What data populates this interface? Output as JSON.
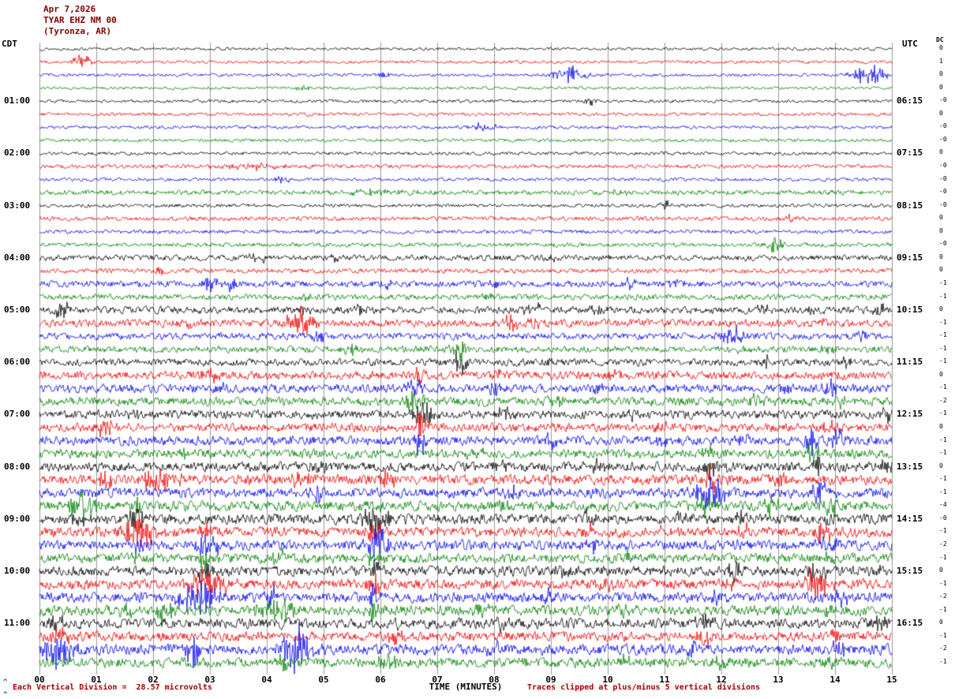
{
  "header": {
    "date": "Apr 7,2026",
    "station": "TYAR EHZ NM 00",
    "location": "(Tyronza, AR)"
  },
  "footer": {
    "scale_note": "Each Vertical Division =  28.57 microvolts",
    "clip_note": "Traces clipped at plus/minus 5 vertical divisions",
    "x_label": "TIME (MINUTES)",
    "caret": "^"
  },
  "chart_data": {
    "type": "line",
    "title": "Helicorder seismogram TYAR EHZ NM 00 (Tyronza, AR) Apr 7,2026",
    "left_timezone": "CDT",
    "right_timezone": "UTC",
    "dc_header": "DC",
    "x_label": "TIME (MINUTES)",
    "x_ticks": [
      "00",
      "01",
      "02",
      "03",
      "04",
      "05",
      "06",
      "07",
      "08",
      "09",
      "10",
      "11",
      "12",
      "13",
      "14",
      "15"
    ],
    "x_range_minutes": [
      0,
      15
    ],
    "minutes_per_row": 15,
    "left_hour_labels": [
      "01:00",
      "02:00",
      "03:00",
      "04:00",
      "05:00",
      "06:00",
      "07:00",
      "08:00",
      "09:00",
      "10:00",
      "11:00"
    ],
    "right_hour_labels": [
      "06:15",
      "07:15",
      "08:15",
      "09:15",
      "10:15",
      "11:15",
      "12:15",
      "13:15",
      "14:15",
      "15:15",
      "16:15"
    ],
    "amplitude_note": "Each vertical division = 28.57 microvolts, traces clipped at plus/minus 5 vertical divisions",
    "colors": {
      "grid": "#9a9a9a",
      "trace_hex": {
        "black": "#000000",
        "red": "#ee0000",
        "blue": "#0000ee",
        "green": "#007f00"
      }
    },
    "rows": [
      {
        "start_cdt": "00:00",
        "color": "black",
        "base_amp": 1.2,
        "dc": "0",
        "bursts": []
      },
      {
        "start_cdt": "00:15",
        "color": "red",
        "base_amp": 1.3,
        "dc": "1",
        "bursts": [
          [
            0.75,
            9
          ]
        ]
      },
      {
        "start_cdt": "00:30",
        "color": "blue",
        "base_amp": 1.3,
        "dc": "0",
        "bursts": [
          [
            6.05,
            4
          ],
          [
            9.3,
            10,
            0.18
          ],
          [
            14.6,
            11,
            0.2
          ]
        ]
      },
      {
        "start_cdt": "00:45",
        "color": "green",
        "base_amp": 1.2,
        "dc": "0",
        "bursts": [
          [
            4.65,
            5
          ]
        ]
      },
      {
        "start_cdt": "01:00",
        "color": "black",
        "base_amp": 1.3,
        "dc": "-0",
        "bursts": [
          [
            9.7,
            4
          ]
        ]
      },
      {
        "start_cdt": "01:15",
        "color": "red",
        "base_amp": 1.4,
        "dc": "0",
        "bursts": []
      },
      {
        "start_cdt": "01:30",
        "color": "blue",
        "base_amp": 1.3,
        "dc": "-0",
        "bursts": [
          [
            7.8,
            4,
            0.25
          ]
        ]
      },
      {
        "start_cdt": "01:45",
        "color": "green",
        "base_amp": 1.4,
        "dc": "-0",
        "bursts": []
      },
      {
        "start_cdt": "02:00",
        "color": "black",
        "base_amp": 1.4,
        "dc": "0",
        "bursts": []
      },
      {
        "start_cdt": "02:15",
        "color": "red",
        "base_amp": 1.6,
        "dc": "-0",
        "bursts": [
          [
            3.8,
            3,
            0.5
          ]
        ]
      },
      {
        "start_cdt": "02:30",
        "color": "blue",
        "base_amp": 1.4,
        "dc": "-0",
        "bursts": [
          [
            4.3,
            4
          ]
        ]
      },
      {
        "start_cdt": "02:45",
        "color": "green",
        "base_amp": 2.0,
        "dc": "-0",
        "bursts": [
          [
            6.0,
            3,
            0.4
          ],
          [
            10.2,
            3
          ]
        ]
      },
      {
        "start_cdt": "03:00",
        "color": "black",
        "base_amp": 1.5,
        "dc": "-0",
        "bursts": [
          [
            11.05,
            7
          ]
        ]
      },
      {
        "start_cdt": "03:15",
        "color": "red",
        "base_amp": 1.8,
        "dc": "0",
        "bursts": [
          [
            13.2,
            4
          ]
        ]
      },
      {
        "start_cdt": "03:30",
        "color": "blue",
        "base_amp": 1.6,
        "dc": "0",
        "bursts": [
          [
            12.1,
            3
          ]
        ]
      },
      {
        "start_cdt": "03:45",
        "color": "green",
        "base_amp": 1.8,
        "dc": "-0",
        "bursts": [
          [
            12.95,
            8
          ]
        ]
      },
      {
        "start_cdt": "04:00",
        "color": "black",
        "base_amp": 2.4,
        "dc": "0",
        "bursts": [
          [
            3.85,
            5
          ],
          [
            5.2,
            4
          ],
          [
            9.0,
            3
          ]
        ]
      },
      {
        "start_cdt": "04:15",
        "color": "red",
        "base_amp": 2.0,
        "dc": "0",
        "bursts": [
          [
            2.1,
            3
          ]
        ]
      },
      {
        "start_cdt": "04:30",
        "color": "blue",
        "base_amp": 2.6,
        "dc": "-1",
        "bursts": [
          [
            3.0,
            9
          ],
          [
            3.35,
            7
          ],
          [
            6.1,
            5
          ],
          [
            8.0,
            4
          ],
          [
            10.4,
            5
          ],
          [
            11.2,
            4
          ]
        ]
      },
      {
        "start_cdt": "04:45",
        "color": "green",
        "base_amp": 2.4,
        "dc": "-1",
        "bursts": [
          [
            4.7,
            4
          ],
          [
            7.9,
            3
          ]
        ]
      },
      {
        "start_cdt": "05:00",
        "color": "black",
        "base_amp": 3.0,
        "dc": "0",
        "bursts": [
          [
            0.4,
            8
          ],
          [
            4.6,
            5
          ],
          [
            5.6,
            6
          ],
          [
            8.7,
            7
          ],
          [
            9.8,
            4
          ],
          [
            12.7,
            4
          ],
          [
            13.6,
            6
          ],
          [
            14.8,
            7
          ]
        ]
      },
      {
        "start_cdt": "05:15",
        "color": "red",
        "base_amp": 3.2,
        "dc": "-1",
        "bursts": [
          [
            2.6,
            6
          ],
          [
            4.6,
            13,
            0.18
          ],
          [
            8.3,
            9
          ],
          [
            8.7,
            7
          ],
          [
            13.8,
            4
          ]
        ]
      },
      {
        "start_cdt": "05:30",
        "color": "blue",
        "base_amp": 2.8,
        "dc": "-1",
        "bursts": [
          [
            4.9,
            10
          ],
          [
            12.2,
            9,
            0.2
          ],
          [
            14.5,
            5
          ]
        ]
      },
      {
        "start_cdt": "05:45",
        "color": "green",
        "base_amp": 2.8,
        "dc": "-1",
        "bursts": [
          [
            5.5,
            6
          ],
          [
            7.4,
            11
          ],
          [
            12.4,
            6
          ],
          [
            13.9,
            5
          ]
        ]
      },
      {
        "start_cdt": "06:00",
        "color": "black",
        "base_amp": 3.0,
        "dc": "-1",
        "bursts": [
          [
            7.4,
            13,
            0.1
          ],
          [
            9.0,
            4
          ],
          [
            12.8,
            7
          ],
          [
            14.2,
            5
          ]
        ]
      },
      {
        "start_cdt": "06:15",
        "color": "red",
        "base_amp": 3.4,
        "dc": "0",
        "bursts": [
          [
            3.0,
            7
          ],
          [
            6.7,
            10
          ],
          [
            8.1,
            6
          ],
          [
            10.1,
            7
          ],
          [
            14.1,
            7
          ]
        ]
      },
      {
        "start_cdt": "06:30",
        "color": "blue",
        "base_amp": 3.6,
        "dc": "-1",
        "bursts": [
          [
            3.2,
            7
          ],
          [
            6.6,
            8
          ],
          [
            8.0,
            6
          ],
          [
            9.8,
            5
          ],
          [
            13.2,
            6
          ],
          [
            13.9,
            8
          ]
        ]
      },
      {
        "start_cdt": "06:45",
        "color": "green",
        "base_amp": 3.6,
        "dc": "-2",
        "bursts": [
          [
            6.6,
            11
          ],
          [
            9.1,
            5
          ],
          [
            12.6,
            9
          ],
          [
            14.1,
            7
          ]
        ]
      },
      {
        "start_cdt": "07:00",
        "color": "black",
        "base_amp": 3.6,
        "dc": "-1",
        "bursts": [
          [
            1.6,
            6
          ],
          [
            6.75,
            15,
            0.12
          ],
          [
            8.2,
            7
          ],
          [
            10.5,
            5
          ],
          [
            14.9,
            7
          ]
        ]
      },
      {
        "start_cdt": "07:15",
        "color": "red",
        "base_amp": 3.6,
        "dc": "0",
        "bursts": [
          [
            1.15,
            9
          ],
          [
            6.7,
            13
          ],
          [
            10.9,
            5
          ],
          [
            13.9,
            5
          ]
        ]
      },
      {
        "start_cdt": "07:30",
        "color": "blue",
        "base_amp": 4.0,
        "dc": "-1",
        "bursts": [
          [
            6.7,
            11
          ],
          [
            9.0,
            6
          ],
          [
            10.9,
            6
          ],
          [
            12.4,
            7
          ],
          [
            13.6,
            13
          ],
          [
            14.05,
            9
          ]
        ]
      },
      {
        "start_cdt": "07:45",
        "color": "green",
        "base_amp": 3.8,
        "dc": "-1",
        "bursts": [
          [
            2.6,
            6
          ],
          [
            7.7,
            7
          ],
          [
            11.8,
            6
          ],
          [
            13.6,
            9
          ]
        ]
      },
      {
        "start_cdt": "08:00",
        "color": "black",
        "base_amp": 4.0,
        "dc": "0",
        "bursts": [
          [
            4.9,
            7
          ],
          [
            8.1,
            6
          ],
          [
            9.8,
            8
          ],
          [
            11.85,
            15,
            0.15
          ],
          [
            13.7,
            8
          ],
          [
            14.9,
            9
          ]
        ]
      },
      {
        "start_cdt": "08:15",
        "color": "red",
        "base_amp": 4.2,
        "dc": "-1",
        "bursts": [
          [
            1.2,
            10
          ],
          [
            2.1,
            15,
            0.2
          ],
          [
            4.6,
            8
          ],
          [
            6.1,
            8
          ],
          [
            11.8,
            13
          ],
          [
            13.0,
            6
          ]
        ]
      },
      {
        "start_cdt": "08:30",
        "color": "blue",
        "base_amp": 4.2,
        "dc": "-1",
        "bursts": [
          [
            4.9,
            10
          ],
          [
            8.3,
            6
          ],
          [
            11.8,
            15,
            0.2
          ],
          [
            13.7,
            11
          ]
        ]
      },
      {
        "start_cdt": "08:45",
        "color": "green",
        "base_amp": 4.2,
        "dc": "-4",
        "bursts": [
          [
            0.75,
            22,
            0.15
          ],
          [
            1.7,
            8
          ],
          [
            5.9,
            6
          ],
          [
            8.2,
            6
          ],
          [
            11.7,
            11
          ],
          [
            12.9,
            7
          ],
          [
            13.9,
            9
          ]
        ]
      },
      {
        "start_cdt": "09:00",
        "color": "black",
        "base_amp": 4.2,
        "dc": "-0",
        "bursts": [
          [
            0.7,
            8
          ],
          [
            1.7,
            13
          ],
          [
            5.9,
            15,
            0.2
          ],
          [
            9.7,
            7
          ],
          [
            11.3,
            6
          ],
          [
            12.3,
            8
          ],
          [
            13.9,
            7
          ]
        ]
      },
      {
        "start_cdt": "09:15",
        "color": "red",
        "base_amp": 4.2,
        "dc": "-1",
        "bursts": [
          [
            1.75,
            17,
            0.2
          ],
          [
            2.9,
            8
          ],
          [
            5.9,
            11
          ],
          [
            9.7,
            8
          ],
          [
            11.0,
            6
          ],
          [
            12.4,
            6
          ],
          [
            13.8,
            15
          ]
        ]
      },
      {
        "start_cdt": "09:30",
        "color": "blue",
        "base_amp": 4.2,
        "dc": "-2",
        "bursts": [
          [
            1.8,
            10
          ],
          [
            2.95,
            15,
            0.15
          ],
          [
            5.95,
            17,
            0.15
          ],
          [
            9.7,
            8
          ],
          [
            12.2,
            6
          ],
          [
            13.9,
            11
          ]
        ]
      },
      {
        "start_cdt": "09:45",
        "color": "green",
        "base_amp": 4.0,
        "dc": "-1",
        "bursts": [
          [
            1.6,
            8
          ],
          [
            2.9,
            10
          ],
          [
            4.2,
            6
          ],
          [
            5.9,
            8
          ],
          [
            10.4,
            6
          ],
          [
            13.9,
            6
          ]
        ]
      },
      {
        "start_cdt": "10:00",
        "color": "black",
        "base_amp": 4.2,
        "dc": "0",
        "bursts": [
          [
            2.9,
            13
          ],
          [
            5.9,
            8
          ],
          [
            9.2,
            7
          ],
          [
            12.2,
            11
          ],
          [
            13.7,
            13
          ],
          [
            14.8,
            7
          ]
        ]
      },
      {
        "start_cdt": "10:15",
        "color": "red",
        "base_amp": 4.2,
        "dc": "-1",
        "bursts": [
          [
            2.95,
            18,
            0.22
          ],
          [
            5.9,
            10
          ],
          [
            10.0,
            6
          ],
          [
            12.1,
            6
          ],
          [
            13.7,
            17,
            0.15
          ]
        ]
      },
      {
        "start_cdt": "10:30",
        "color": "blue",
        "base_amp": 4.2,
        "dc": "-2",
        "bursts": [
          [
            2.8,
            17,
            0.25
          ],
          [
            4.1,
            10
          ],
          [
            5.9,
            13
          ],
          [
            9.0,
            6
          ],
          [
            11.9,
            6
          ],
          [
            14.1,
            9
          ]
        ]
      },
      {
        "start_cdt": "10:45",
        "color": "green",
        "base_amp": 4.2,
        "dc": "-1",
        "bursts": [
          [
            1.5,
            10
          ],
          [
            2.2,
            13
          ],
          [
            4.15,
            16,
            0.2
          ],
          [
            5.9,
            11
          ],
          [
            7.8,
            6
          ],
          [
            10.3,
            6
          ],
          [
            13.9,
            6
          ]
        ]
      },
      {
        "start_cdt": "11:00",
        "color": "black",
        "base_amp": 4.2,
        "dc": "0",
        "bursts": [
          [
            0.3,
            11
          ],
          [
            6.3,
            8
          ],
          [
            8.1,
            6
          ],
          [
            11.7,
            11
          ],
          [
            14.8,
            9
          ]
        ]
      },
      {
        "start_cdt": "11:15",
        "color": "red",
        "base_amp": 4.0,
        "dc": "-1",
        "bursts": [
          [
            0.35,
            13
          ],
          [
            6.3,
            10
          ],
          [
            11.7,
            9
          ],
          [
            14.0,
            6
          ]
        ]
      },
      {
        "start_cdt": "11:30",
        "color": "blue",
        "base_amp": 4.4,
        "dc": "-2",
        "bursts": [
          [
            0.3,
            17,
            0.2
          ],
          [
            2.7,
            15
          ],
          [
            4.5,
            26,
            0.18
          ],
          [
            8.0,
            6
          ],
          [
            11.5,
            6
          ],
          [
            14.1,
            11
          ]
        ]
      },
      {
        "start_cdt": "11:45",
        "color": "green",
        "base_amp": 4.0,
        "dc": "-1",
        "bursts": [
          [
            4.3,
            8
          ],
          [
            6.1,
            11
          ],
          [
            8.5,
            6
          ],
          [
            10.3,
            6
          ],
          [
            12.0,
            7
          ],
          [
            14.0,
            9
          ]
        ]
      }
    ]
  }
}
